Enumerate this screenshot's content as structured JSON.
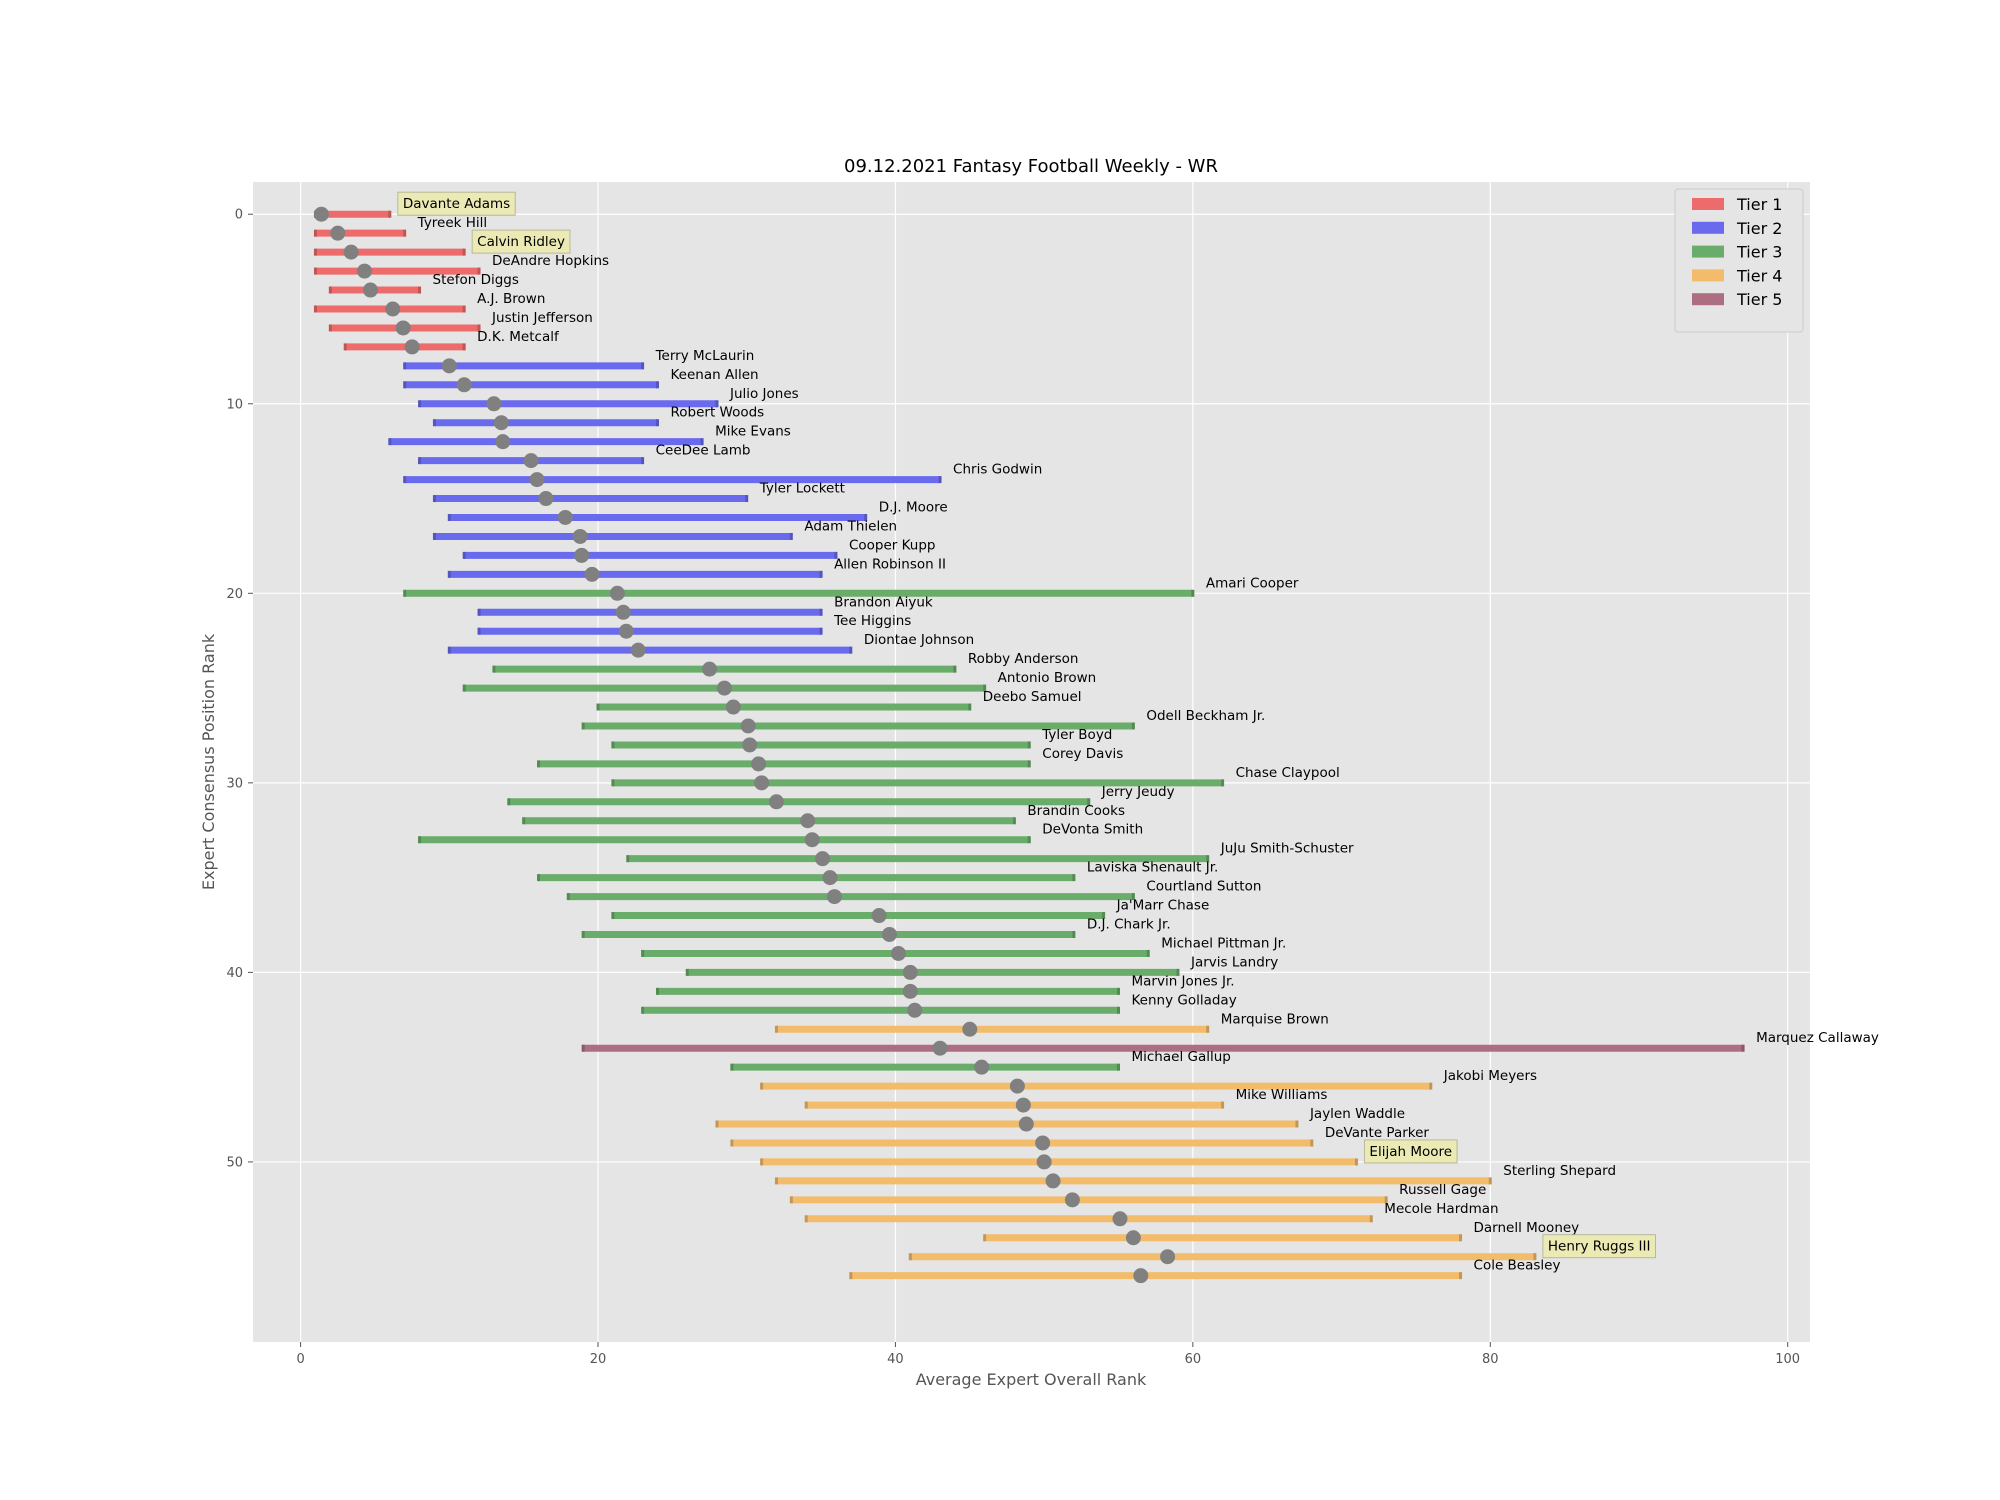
{
  "chart_data": {
    "type": "range",
    "title": "09.12.2021 Fantasy Football Weekly - WR",
    "xlabel": "Average Expert Overall Rank",
    "ylabel": "Expert Consensus Position Rank",
    "xlim": [
      -3.2,
      101.5
    ],
    "ylim": [
      59.5,
      -1.7
    ],
    "xticks": [
      0,
      20,
      40,
      60,
      80,
      100
    ],
    "yticks": [
      0,
      10,
      20,
      30,
      40,
      50
    ],
    "grid": true,
    "legend_position": "top-right",
    "tiers": [
      {
        "name": "Tier 1",
        "color": "#ee6b6b"
      },
      {
        "name": "Tier 2",
        "color": "#6a6aee"
      },
      {
        "name": "Tier 3",
        "color": "#6aac6a"
      },
      {
        "name": "Tier 4",
        "color": "#f2bc6b"
      },
      {
        "name": "Tier 5",
        "color": "#ae6e82"
      }
    ],
    "marker_color": "#808080",
    "highlight_color": "#ebeab4",
    "players": [
      {
        "name": "Davante Adams",
        "tier": 1,
        "rank": 1,
        "min": 1,
        "max": 6,
        "avg": 1.4,
        "highlight": true
      },
      {
        "name": "Tyreek Hill",
        "tier": 1,
        "rank": 2,
        "min": 1,
        "max": 7,
        "avg": 2.5
      },
      {
        "name": "Calvin Ridley",
        "tier": 1,
        "rank": 3,
        "min": 1,
        "max": 11,
        "avg": 3.4,
        "highlight": true
      },
      {
        "name": "DeAndre Hopkins",
        "tier": 1,
        "rank": 4,
        "min": 1,
        "max": 12,
        "avg": 4.3
      },
      {
        "name": "Stefon Diggs",
        "tier": 1,
        "rank": 5,
        "min": 2,
        "max": 8,
        "avg": 4.7
      },
      {
        "name": "A.J. Brown",
        "tier": 1,
        "rank": 6,
        "min": 1,
        "max": 11,
        "avg": 6.2
      },
      {
        "name": "Justin Jefferson",
        "tier": 1,
        "rank": 7,
        "min": 2,
        "max": 12,
        "avg": 6.9
      },
      {
        "name": "D.K. Metcalf",
        "tier": 1,
        "rank": 8,
        "min": 3,
        "max": 11,
        "avg": 7.5
      },
      {
        "name": "Terry McLaurin",
        "tier": 2,
        "rank": 9,
        "min": 7,
        "max": 23,
        "avg": 10.0
      },
      {
        "name": "Keenan Allen",
        "tier": 2,
        "rank": 10,
        "min": 7,
        "max": 24,
        "avg": 11.0
      },
      {
        "name": "Julio Jones",
        "tier": 2,
        "rank": 11,
        "min": 8,
        "max": 28,
        "avg": 13.0
      },
      {
        "name": "Robert Woods",
        "tier": 2,
        "rank": 12,
        "min": 9,
        "max": 24,
        "avg": 13.5
      },
      {
        "name": "Mike Evans",
        "tier": 2,
        "rank": 13,
        "min": 6,
        "max": 27,
        "avg": 13.6
      },
      {
        "name": "CeeDee Lamb",
        "tier": 2,
        "rank": 14,
        "min": 8,
        "max": 23,
        "avg": 15.5
      },
      {
        "name": "Chris Godwin",
        "tier": 2,
        "rank": 15,
        "min": 7,
        "max": 43,
        "avg": 15.9
      },
      {
        "name": "Tyler Lockett",
        "tier": 2,
        "rank": 16,
        "min": 9,
        "max": 30,
        "avg": 16.5
      },
      {
        "name": "D.J. Moore",
        "tier": 2,
        "rank": 17,
        "min": 10,
        "max": 38,
        "avg": 17.8
      },
      {
        "name": "Adam Thielen",
        "tier": 2,
        "rank": 18,
        "min": 9,
        "max": 33,
        "avg": 18.8
      },
      {
        "name": "Cooper Kupp",
        "tier": 2,
        "rank": 19,
        "min": 11,
        "max": 36,
        "avg": 18.9
      },
      {
        "name": "Allen Robinson II",
        "tier": 2,
        "rank": 20,
        "min": 10,
        "max": 35,
        "avg": 19.6
      },
      {
        "name": "Amari Cooper",
        "tier": 3,
        "rank": 21,
        "min": 7,
        "max": 60,
        "avg": 21.3
      },
      {
        "name": "Brandon Aiyuk",
        "tier": 2,
        "rank": 22,
        "min": 12,
        "max": 35,
        "avg": 21.7
      },
      {
        "name": "Tee Higgins",
        "tier": 2,
        "rank": 23,
        "min": 12,
        "max": 35,
        "avg": 21.9
      },
      {
        "name": "Diontae Johnson",
        "tier": 2,
        "rank": 24,
        "min": 10,
        "max": 37,
        "avg": 22.7
      },
      {
        "name": "Robby Anderson",
        "tier": 3,
        "rank": 25,
        "min": 13,
        "max": 44,
        "avg": 27.5
      },
      {
        "name": "Antonio Brown",
        "tier": 3,
        "rank": 26,
        "min": 11,
        "max": 46,
        "avg": 28.5
      },
      {
        "name": "Deebo Samuel",
        "tier": 3,
        "rank": 27,
        "min": 20,
        "max": 45,
        "avg": 29.1
      },
      {
        "name": "Odell Beckham Jr.",
        "tier": 3,
        "rank": 28,
        "min": 19,
        "max": 56,
        "avg": 30.1
      },
      {
        "name": "Tyler Boyd",
        "tier": 3,
        "rank": 29,
        "min": 21,
        "max": 49,
        "avg": 30.2
      },
      {
        "name": "Corey Davis",
        "tier": 3,
        "rank": 30,
        "min": 16,
        "max": 49,
        "avg": 30.8
      },
      {
        "name": "Chase Claypool",
        "tier": 3,
        "rank": 31,
        "min": 21,
        "max": 62,
        "avg": 31.0
      },
      {
        "name": "Jerry Jeudy",
        "tier": 3,
        "rank": 32,
        "min": 14,
        "max": 53,
        "avg": 32.0
      },
      {
        "name": "Brandin Cooks",
        "tier": 3,
        "rank": 33,
        "min": 15,
        "max": 48,
        "avg": 34.1
      },
      {
        "name": "DeVonta Smith",
        "tier": 3,
        "rank": 34,
        "min": 8,
        "max": 49,
        "avg": 34.4
      },
      {
        "name": "JuJu Smith-Schuster",
        "tier": 3,
        "rank": 35,
        "min": 22,
        "max": 61,
        "avg": 35.1
      },
      {
        "name": "Laviska Shenault Jr.",
        "tier": 3,
        "rank": 36,
        "min": 16,
        "max": 52,
        "avg": 35.6
      },
      {
        "name": "Courtland Sutton",
        "tier": 3,
        "rank": 37,
        "min": 18,
        "max": 56,
        "avg": 35.9
      },
      {
        "name": "Ja'Marr Chase",
        "tier": 3,
        "rank": 38,
        "min": 21,
        "max": 54,
        "avg": 38.9
      },
      {
        "name": "D.J. Chark Jr.",
        "tier": 3,
        "rank": 39,
        "min": 19,
        "max": 52,
        "avg": 39.6
      },
      {
        "name": "Michael Pittman Jr.",
        "tier": 3,
        "rank": 40,
        "min": 23,
        "max": 57,
        "avg": 40.2
      },
      {
        "name": "Jarvis Landry",
        "tier": 3,
        "rank": 41,
        "min": 26,
        "max": 59,
        "avg": 41.0
      },
      {
        "name": "Marvin Jones Jr.",
        "tier": 3,
        "rank": 42,
        "min": 24,
        "max": 55,
        "avg": 41.0
      },
      {
        "name": "Kenny Golladay",
        "tier": 3,
        "rank": 43,
        "min": 23,
        "max": 55,
        "avg": 41.3
      },
      {
        "name": "Marquise Brown",
        "tier": 4,
        "rank": 44,
        "min": 32,
        "max": 61,
        "avg": 45.0
      },
      {
        "name": "Marquez Callaway",
        "tier": 5,
        "rank": 45,
        "min": 19,
        "max": 97,
        "avg": 43.0
      },
      {
        "name": "Michael Gallup",
        "tier": 3,
        "rank": 46,
        "min": 29,
        "max": 55,
        "avg": 45.8
      },
      {
        "name": "Jakobi Meyers",
        "tier": 4,
        "rank": 47,
        "min": 31,
        "max": 76,
        "avg": 48.2
      },
      {
        "name": "Mike Williams",
        "tier": 4,
        "rank": 48,
        "min": 34,
        "max": 62,
        "avg": 48.6
      },
      {
        "name": "Jaylen Waddle",
        "tier": 4,
        "rank": 49,
        "min": 28,
        "max": 67,
        "avg": 48.8
      },
      {
        "name": "DeVante Parker",
        "tier": 4,
        "rank": 50,
        "min": 29,
        "max": 68,
        "avg": 49.9
      },
      {
        "name": "Elijah Moore",
        "tier": 4,
        "rank": 51,
        "min": 31,
        "max": 71,
        "avg": 50.0,
        "highlight": true
      },
      {
        "name": "Sterling Shepard",
        "tier": 4,
        "rank": 52,
        "min": 32,
        "max": 80,
        "avg": 50.6
      },
      {
        "name": "Russell Gage",
        "tier": 4,
        "rank": 53,
        "min": 33,
        "max": 73,
        "avg": 51.9
      },
      {
        "name": "Mecole Hardman",
        "tier": 4,
        "rank": 54,
        "min": 34,
        "max": 72,
        "avg": 55.1
      },
      {
        "name": "Darnell Mooney",
        "tier": 4,
        "rank": 55,
        "min": 46,
        "max": 78,
        "avg": 56.0
      },
      {
        "name": "Henry Ruggs III",
        "tier": 4,
        "rank": 56,
        "min": 41,
        "max": 83,
        "avg": 58.3,
        "highlight": true
      },
      {
        "name": "Cole Beasley",
        "tier": 4,
        "rank": 57,
        "min": 37,
        "max": 78,
        "avg": 56.5
      }
    ]
  }
}
